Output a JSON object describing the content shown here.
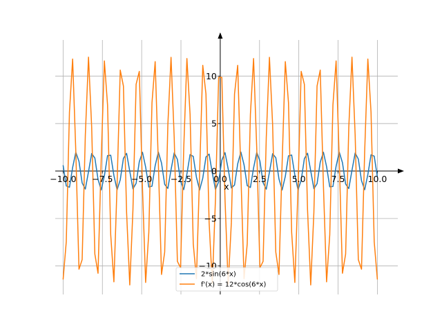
{
  "chart_data": {
    "type": "line",
    "title": "",
    "xlabel": "x",
    "ylabel": "",
    "xlim": [
      -10.5,
      11.3
    ],
    "ylim": [
      -13.0,
      13.8
    ],
    "grid": true,
    "legend_position": "bottom-center",
    "x_ticks": [
      -10.0,
      -7.5,
      -5.0,
      -2.5,
      0.0,
      2.5,
      5.0,
      7.5,
      10.0
    ],
    "x_tick_labels": [
      "−10.0",
      "−7.5",
      "−5.0",
      "−2.5",
      "0.0",
      "2.5",
      "5.0",
      "7.5",
      "10.0"
    ],
    "y_ticks": [
      -10,
      -5,
      0,
      5,
      10
    ],
    "y_tick_labels": [
      "−10",
      "−5",
      "0",
      "5",
      "10"
    ],
    "sampling": {
      "x_start": -10,
      "x_end": 10,
      "points": 100
    },
    "series": [
      {
        "name": "2*sin(6*x)",
        "expression": "2*sin(6*x)",
        "amplitude": 2,
        "frequency": 6,
        "phase": "sin",
        "color": "#1f77b4"
      },
      {
        "name": "f'(x) = 12*cos(6*x)",
        "expression": "12*cos(6*x)",
        "amplitude": 12,
        "frequency": 6,
        "phase": "cos",
        "color": "#ff7f0e"
      }
    ]
  }
}
